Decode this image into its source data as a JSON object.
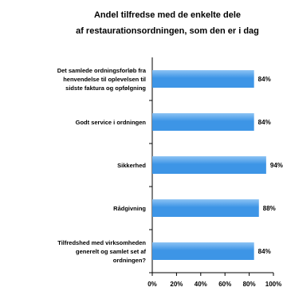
{
  "chart_data": {
    "type": "bar",
    "orientation": "horizontal",
    "title": "Andel tilfredse med de enkelte dele af restaurationsordningen, som den er i dag",
    "categories": [
      "Det samlede ordningsforløb fra henvendelse til oplevelsen til sidste faktura og opfølgning",
      "Godt service i ordningen",
      "Sikkerhed",
      "Rådgivning",
      "Tilfredshed med virksomheden generelt og samlet set af ordningen?"
    ],
    "values": [
      84,
      84,
      94,
      88,
      84
    ],
    "value_labels": [
      "84%",
      "84%",
      "94%",
      "88%",
      "84%"
    ],
    "xlim": [
      0,
      100
    ],
    "x_ticks": [
      "0%",
      "20%",
      "40%",
      "60%",
      "80%",
      "100%"
    ],
    "xlabel": "",
    "ylabel": "",
    "grid": false,
    "legend": "none",
    "bar_color": "#3d95e6",
    "bar_color_light": "#8cc3f4"
  }
}
